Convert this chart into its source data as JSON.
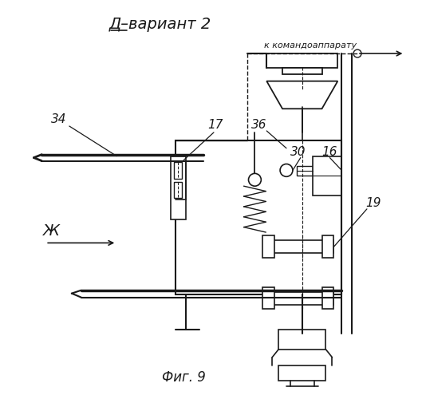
{
  "title": "Д–вариант 2",
  "subtitle": "к командоаппарату",
  "fig_label": "Фиг. 9",
  "bg_color": "#ffffff",
  "line_color": "#1a1a1a",
  "lw": 1.3
}
